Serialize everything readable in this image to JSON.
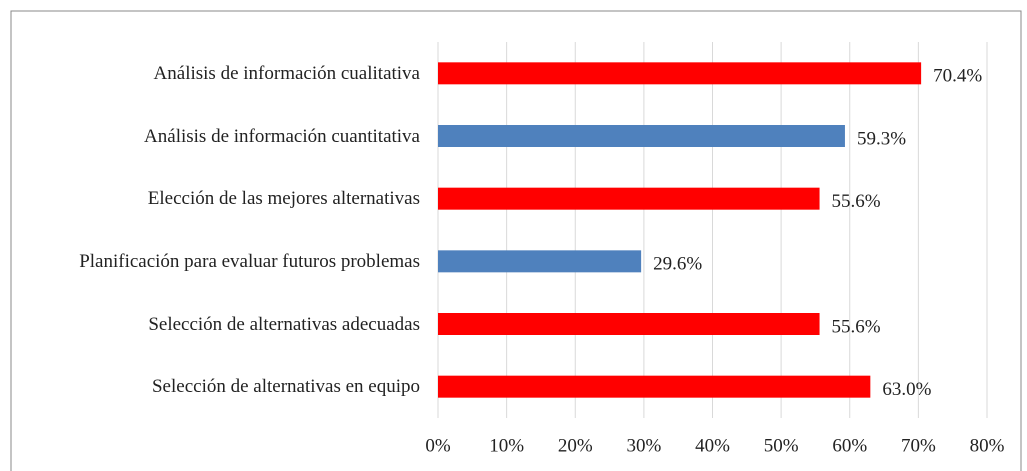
{
  "chart_data": {
    "type": "bar",
    "orientation": "horizontal",
    "categories": [
      "Análisis de información cualitativa",
      "Análisis de información cuantitativa",
      "Elección de las mejores alternativas",
      "Planificación para evaluar futuros problemas",
      "Selección de alternativas adecuadas",
      "Selección de alternativas en equipo"
    ],
    "values": [
      70.4,
      59.3,
      55.6,
      29.6,
      55.6,
      63.0
    ],
    "value_labels": [
      "70.4%",
      "59.3%",
      "55.6%",
      "29.6%",
      "55.6%",
      "63.0%"
    ],
    "colors": [
      "#ff0000",
      "#4f81bd",
      "#ff0000",
      "#4f81bd",
      "#ff0000",
      "#ff0000"
    ],
    "xlim": [
      0,
      80
    ],
    "xticks": [
      {
        "value": 0,
        "label": "0%"
      },
      {
        "value": 10,
        "label": "10%"
      },
      {
        "value": 20,
        "label": "20%"
      },
      {
        "value": 30,
        "label": "30%"
      },
      {
        "value": 40,
        "label": "40%"
      },
      {
        "value": 50,
        "label": "50%"
      },
      {
        "value": 60,
        "label": "60%"
      },
      {
        "value": 70,
        "label": "70%"
      },
      {
        "value": 80,
        "label": "80%"
      }
    ],
    "grid": true
  }
}
